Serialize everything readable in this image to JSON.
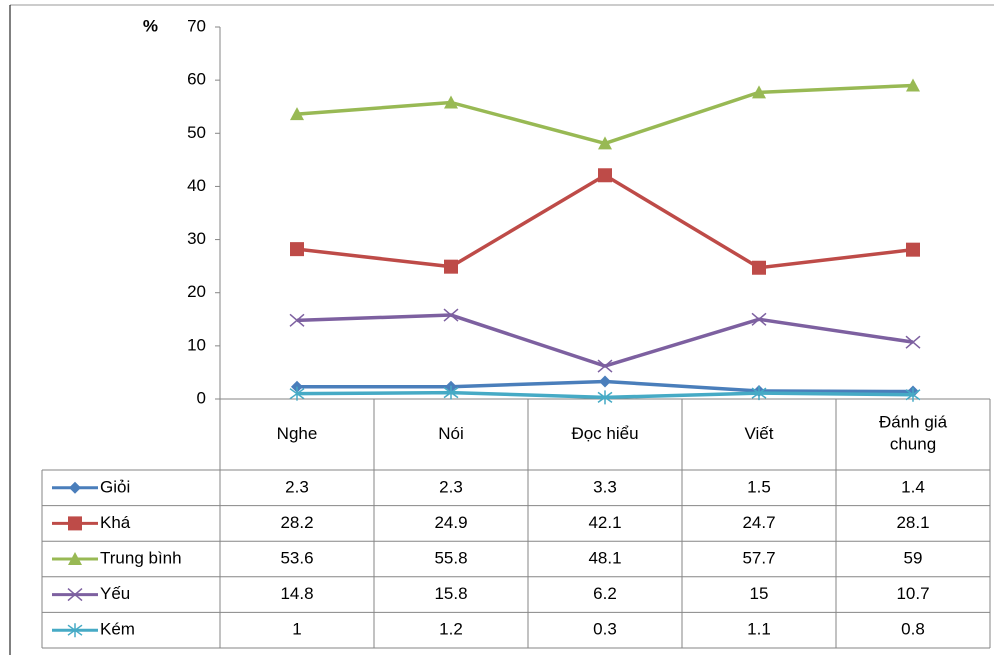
{
  "chart_data": {
    "type": "line",
    "ylabel": "%",
    "categories": [
      "Nghe",
      "Nói",
      "Đọc hiểu",
      "Viết",
      "Đánh giá chung"
    ],
    "series": [
      {
        "name": "Giỏi",
        "color": "#4a7ebb",
        "marker": "diamond",
        "values": [
          2.3,
          2.3,
          3.3,
          1.5,
          1.4
        ]
      },
      {
        "name": "Khá",
        "color": "#be4b48",
        "marker": "square",
        "values": [
          28.2,
          24.9,
          42.1,
          24.7,
          28.1
        ]
      },
      {
        "name": "Trung bình",
        "color": "#98b954",
        "marker": "triangle",
        "values": [
          53.6,
          55.8,
          48.1,
          57.7,
          59
        ]
      },
      {
        "name": "Yếu",
        "color": "#7d60a0",
        "marker": "x",
        "values": [
          14.8,
          15.8,
          6.2,
          15,
          10.7
        ]
      },
      {
        "name": "Kém",
        "color": "#46aac5",
        "marker": "star",
        "values": [
          1,
          1.2,
          0.3,
          1.1,
          0.8
        ]
      }
    ],
    "ylim": [
      0,
      70
    ],
    "yticks": [
      0,
      10,
      20,
      30,
      40,
      50,
      60,
      70
    ],
    "grid": false
  }
}
